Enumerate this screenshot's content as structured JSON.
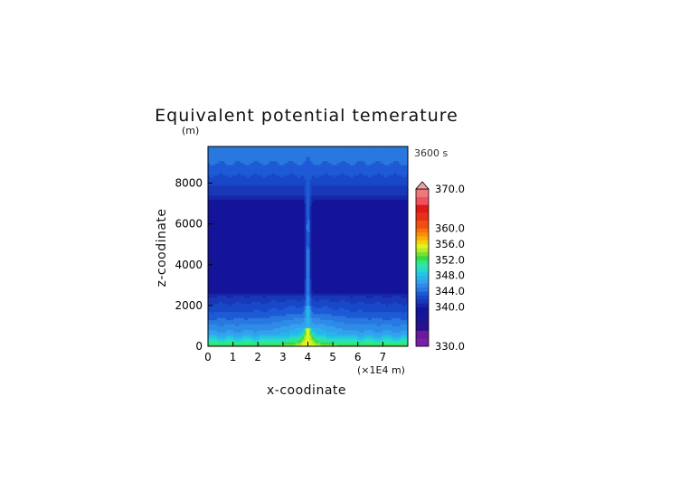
{
  "chart_data": {
    "type": "heatmap",
    "title": "Equivalent potential temerature",
    "ylabel": "z-coodinate",
    "xlabel": "x-coodinate",
    "yunit": "(m)",
    "xunit": "(×1E4 m)",
    "time_label": "3600 s",
    "xlim": [
      0,
      8
    ],
    "ylim": [
      0,
      9800
    ],
    "xticks": [
      0,
      1,
      2,
      3,
      4,
      5,
      6,
      7
    ],
    "yticks": [
      0,
      2000,
      4000,
      6000,
      8000
    ],
    "colorbar": {
      "min": 330.0,
      "max": 370.0,
      "labels": [
        "370.0",
        "360.0",
        "356.0",
        "352.0",
        "348.0",
        "344.0",
        "340.0",
        "330.0"
      ],
      "label_values": [
        370,
        360,
        356,
        352,
        348,
        344,
        340,
        330
      ],
      "levels": [
        330,
        332,
        334,
        336,
        338,
        340,
        341,
        342,
        343,
        344,
        345,
        346,
        347,
        348,
        349,
        350,
        351,
        352,
        353,
        354,
        355,
        356,
        357,
        358,
        359,
        360,
        362,
        364,
        366,
        368,
        370
      ],
      "colors": [
        "#7a1fa8",
        "#6a1a9a",
        "#2a0f8e",
        "#1a1590",
        "#14149a",
        "#1626a8",
        "#1838b8",
        "#1848c8",
        "#1e5ad6",
        "#2878e0",
        "#2e8ce8",
        "#34a0ee",
        "#28b6ea",
        "#22c8e2",
        "#2ad8c8",
        "#30e4a8",
        "#2ee880",
        "#3ad840",
        "#7ae030",
        "#b4ea30",
        "#e4f020",
        "#f6d010",
        "#f8b008",
        "#f89008",
        "#f87010",
        "#f05010",
        "#e83018",
        "#e01818",
        "#f05060",
        "#f07878"
      ],
      "extend_top_color": "#f2a0a0"
    },
    "profile_z": [
      0,
      300,
      600,
      900,
      1200,
      1500,
      1800,
      2100,
      2400,
      2700,
      3500,
      5000,
      6500,
      7100,
      7400,
      7800,
      8200,
      8600,
      9000,
      9400,
      9800
    ],
    "profile_theta_env": [
      353,
      349.5,
      346.5,
      345.5,
      344.5,
      343.5,
      342.7,
      342,
      341.3,
      339.5,
      339,
      338.6,
      338.8,
      339.6,
      341,
      341.8,
      342.6,
      343.4,
      344,
      344.6,
      345
    ],
    "plume_center_x": 4.0,
    "plume_base_halfwidth": 0.3,
    "plume_stem_halfwidth": 0.1,
    "plume_top_z": 9300
  }
}
